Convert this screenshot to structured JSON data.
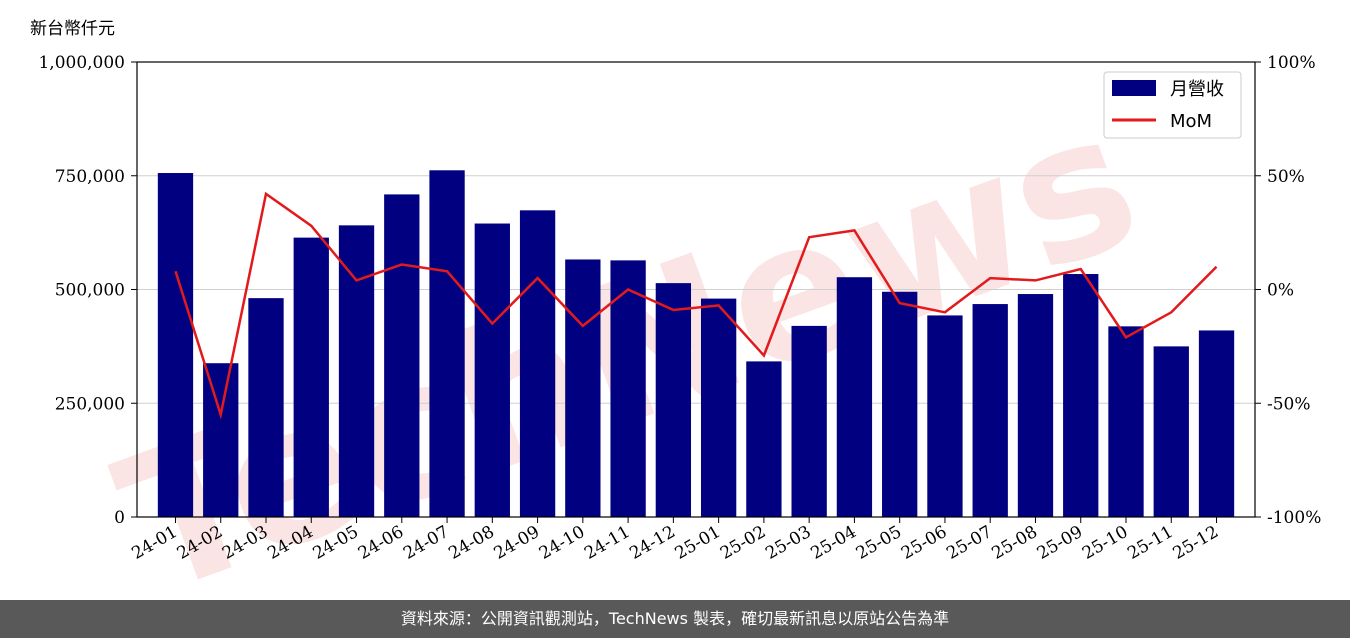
{
  "chart_data": {
    "type": "bar",
    "y_left_label": "新台幣仟元",
    "categories": [
      "24-01",
      "24-02",
      "24-03",
      "24-04",
      "24-05",
      "24-06",
      "24-07",
      "24-08",
      "24-09",
      "24-10",
      "24-11",
      "24-12",
      "25-01",
      "25-02",
      "25-03",
      "25-04",
      "25-05",
      "25-06",
      "25-07",
      "25-08",
      "25-09",
      "25-10",
      "25-11",
      "25-12"
    ],
    "series": [
      {
        "name": "月營收",
        "type": "bar",
        "axis": "left",
        "color": "#000080",
        "values": [
          756000,
          338000,
          481000,
          614000,
          641000,
          709000,
          762000,
          645000,
          674000,
          566000,
          564000,
          514000,
          480000,
          342000,
          420000,
          527000,
          495000,
          443000,
          468000,
          490000,
          534000,
          419000,
          375000,
          410000
        ]
      },
      {
        "name": "MoM",
        "type": "line",
        "axis": "right",
        "color": "#e31a1c",
        "values": [
          8,
          -55,
          42,
          28,
          4,
          11,
          8,
          -15,
          5,
          -16,
          0,
          -9,
          -7,
          -29,
          23,
          26,
          -6,
          -10,
          5,
          4,
          9,
          -21,
          -10,
          10
        ]
      }
    ],
    "y_left": {
      "min": 0,
      "max": 1000000,
      "ticks": [
        "0",
        "250,000",
        "500,000",
        "750,000",
        "1,000,000"
      ],
      "tick_values": [
        0,
        250000,
        500000,
        750000,
        1000000
      ]
    },
    "y_right": {
      "min": -100,
      "max": 100,
      "ticks": [
        "-100%",
        "-50%",
        "0%",
        "50%",
        "100%"
      ],
      "tick_values": [
        -100,
        -50,
        0,
        50,
        100
      ]
    },
    "grid": "horizontal",
    "legend_position": "top-right"
  },
  "watermark": "TechNews",
  "footer": "資料來源：公開資訊觀測站，TechNews 製表，確切最新訊息以原站公告為準"
}
